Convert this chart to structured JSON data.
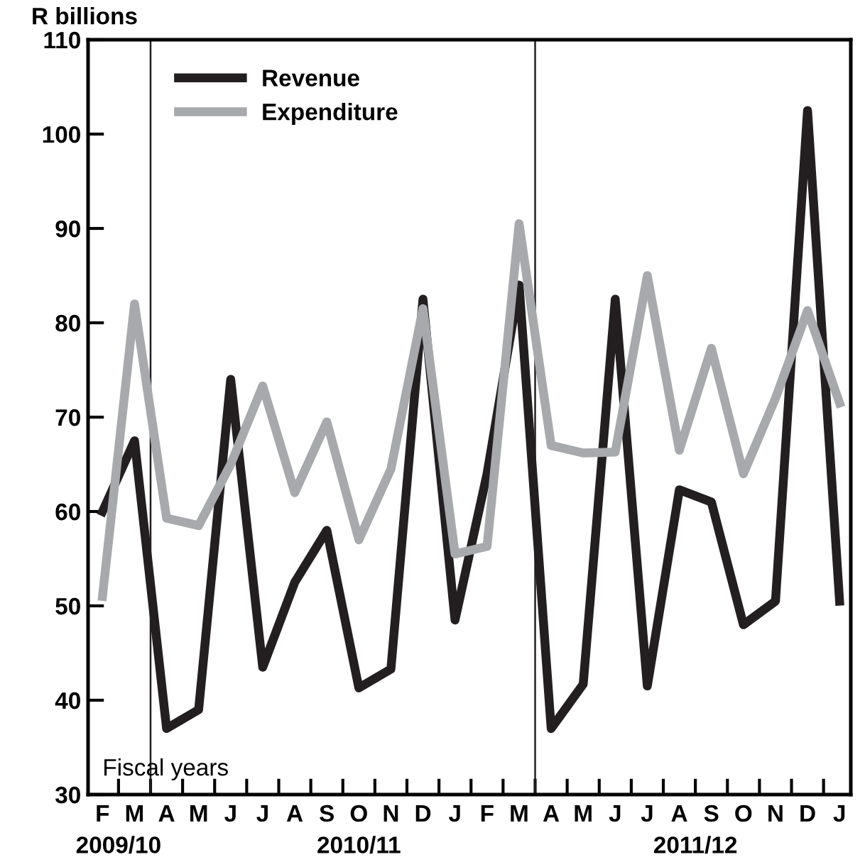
{
  "chart_data": {
    "type": "line",
    "ylabel": "R billions",
    "categories": [
      "F",
      "M",
      "A",
      "M",
      "J",
      "J",
      "A",
      "S",
      "O",
      "N",
      "D",
      "J",
      "F",
      "M",
      "A",
      "M",
      "J",
      "J",
      "A",
      "S",
      "O",
      "N",
      "D",
      "J"
    ],
    "ylim": [
      30,
      110
    ],
    "yticks": [
      30,
      40,
      50,
      60,
      70,
      80,
      90,
      100,
      110
    ],
    "series": [
      {
        "name": "Revenue",
        "color": "#231f20",
        "values": [
          60,
          67.5,
          37,
          39,
          74,
          43.5,
          52.5,
          58,
          41.3,
          43.3,
          82.5,
          48.5,
          64,
          84,
          37,
          41.7,
          82.5,
          41.5,
          62.3,
          61,
          48,
          50.5,
          102.5,
          50.5
        ]
      },
      {
        "name": "Expenditure",
        "color": "#a7a9ac",
        "values": [
          51,
          82,
          59.3,
          58.5,
          65,
          73.3,
          62,
          69.5,
          57,
          64.5,
          81.5,
          55.5,
          56.3,
          90.5,
          67,
          66.2,
          66.3,
          85,
          66.5,
          77.3,
          64,
          72,
          81.3,
          71.5
        ]
      }
    ],
    "annotations": [
      "Fiscal years",
      "2009/10",
      "2010/11",
      "2011/12"
    ],
    "legend": "top left",
    "grid": false,
    "marker": "none",
    "line_style": "solid"
  }
}
